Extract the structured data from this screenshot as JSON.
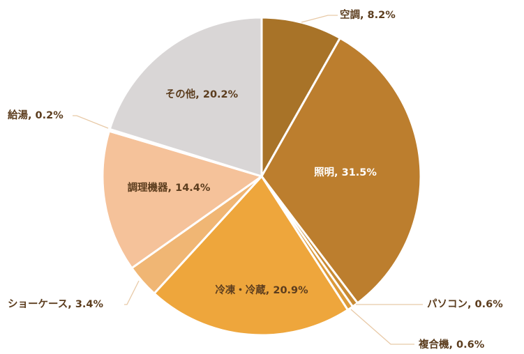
{
  "chart_data": {
    "type": "pie",
    "title": "",
    "start_angle_deg": 0,
    "direction": "clockwise",
    "slices": [
      {
        "name": "空調",
        "value": 8.2,
        "label": "空調, 8.2%",
        "color": "#a87328",
        "label_mode": "outside",
        "label_color": "#5c3d1e"
      },
      {
        "name": "照明",
        "value": 31.5,
        "label": "照明, 31.5%",
        "color": "#bc7e2e",
        "label_mode": "inside",
        "label_color": "#ffffff"
      },
      {
        "name": "パソコン",
        "value": 0.6,
        "label": "パソコン, 0.6%",
        "color": "#c88a34",
        "label_mode": "outside",
        "label_color": "#5c3d1e"
      },
      {
        "name": "複合機",
        "value": 0.6,
        "label": "複合機, 0.6%",
        "color": "#dc9a3a",
        "label_mode": "outside",
        "label_color": "#5c3d1e"
      },
      {
        "name": "冷凍・冷蔵",
        "value": 20.9,
        "label": "冷凍・冷蔵, 20.9%",
        "color": "#eea63c",
        "label_mode": "inside",
        "label_color": "#5c3d1e"
      },
      {
        "name": "ショーケース",
        "value": 3.4,
        "label": "ショーケース, 3.4%",
        "color": "#f0b674",
        "label_mode": "outside",
        "label_color": "#5c3d1e"
      },
      {
        "name": "調理機器",
        "value": 14.4,
        "label": "調理機器, 14.4%",
        "color": "#f5c29a",
        "label_mode": "inside",
        "label_color": "#5c3d1e"
      },
      {
        "name": "給湯",
        "value": 0.2,
        "label": "給湯, 0.2%",
        "color": "#e8dfd6",
        "label_mode": "outside",
        "label_color": "#5c3d1e"
      },
      {
        "name": "その他",
        "value": 20.2,
        "label": "その他, 20.2%",
        "color": "#d9d6d6",
        "label_mode": "inside",
        "label_color": "#5c3d1e"
      }
    ],
    "leader_color": "#e8c9a6",
    "legend": "none"
  }
}
